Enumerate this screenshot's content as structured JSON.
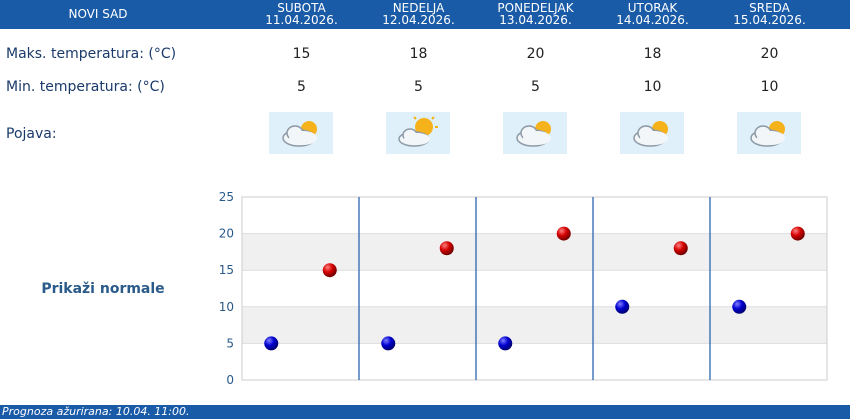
{
  "city": "NOVI SAD",
  "days": [
    {
      "name": "SUBOTA",
      "date": "11.04.2026.",
      "max": "15",
      "min": "5",
      "icon": "partly-cloudy-icon"
    },
    {
      "name": "NEDELJA",
      "date": "12.04.2026.",
      "max": "18",
      "min": "5",
      "icon": "sun-behind-cloud-icon"
    },
    {
      "name": "PONEDELJAK",
      "date": "13.04.2026.",
      "max": "20",
      "min": "5",
      "icon": "partly-cloudy-icon"
    },
    {
      "name": "UTORAK",
      "date": "14.04.2026.",
      "max": "18",
      "min": "10",
      "icon": "partly-cloudy-icon"
    },
    {
      "name": "SREDA",
      "date": "15.04.2026.",
      "max": "20",
      "min": "10",
      "icon": "partly-cloudy-icon"
    }
  ],
  "labels": {
    "max": "Maks. temperatura: (°C)",
    "min": "Min. temperatura: (°C)",
    "phenomenon": "Pojava:",
    "normals": "Prikaži normale"
  },
  "footer": "Prognoza ažurirana:  10.04.  11:00.",
  "colors": {
    "header": "#1a5ba8",
    "max_marker": "#cc0000",
    "min_marker": "#0000cc"
  },
  "chart_data": {
    "type": "scatter",
    "categories": [
      "SUBOTA",
      "NEDELJA",
      "PONEDELJAK",
      "UTORAK",
      "SREDA"
    ],
    "series": [
      {
        "values": [
          5,
          5,
          5,
          10,
          10
        ],
        "color": "#0000cc"
      },
      {
        "values": [
          15,
          18,
          20,
          18,
          20
        ],
        "color": "#cc0000"
      }
    ],
    "yticks": [
      "0",
      "5",
      "10",
      "15",
      "20",
      "25"
    ],
    "ylim": [
      0,
      25
    ],
    "grid": true
  }
}
